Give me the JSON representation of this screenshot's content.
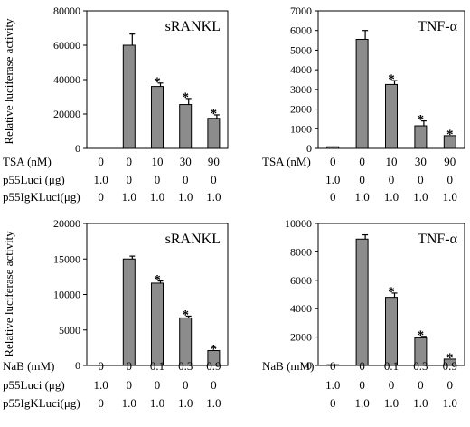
{
  "figure": {
    "ylabel": "Relative luciferase activity"
  },
  "chart_data": [
    {
      "type": "bar",
      "title": "sRANKL",
      "ylabel": "Relative luciferase activity",
      "ylim": [
        0,
        80000
      ],
      "y_ticks": [
        "0",
        "20000",
        "40000",
        "60000",
        "80000"
      ],
      "values": [
        0,
        60000,
        36000,
        25500,
        17500
      ],
      "errors": [
        0,
        6500,
        2000,
        3500,
        2000
      ],
      "significance": [
        "",
        "",
        "*",
        "*",
        "*"
      ],
      "conditions": [
        {
          "label": "TSA (nM)",
          "values": [
            "0",
            "0",
            "10",
            "30",
            "90"
          ]
        },
        {
          "label": "p55Luci (μg)",
          "values": [
            "1.0",
            "0",
            "0",
            "0",
            "0"
          ]
        },
        {
          "label": "p55IgKLuci(μg)",
          "values": [
            "0",
            "1.0",
            "1.0",
            "1.0",
            "1.0"
          ]
        }
      ]
    },
    {
      "type": "bar",
      "title": "TNF-α",
      "ylabel": "",
      "ylim": [
        0,
        7000
      ],
      "y_ticks": [
        "0",
        "1000",
        "2000",
        "3000",
        "4000",
        "5000",
        "6000",
        "7000"
      ],
      "values": [
        80,
        5550,
        3250,
        1150,
        650
      ],
      "errors": [
        0,
        450,
        200,
        250,
        0
      ],
      "significance": [
        "",
        "",
        "*",
        "*",
        "*"
      ],
      "conditions": [
        {
          "label": "TSA (nM)",
          "values": [
            "0",
            "0",
            "10",
            "30",
            "90"
          ]
        },
        {
          "label": "",
          "values": [
            "1.0",
            "0",
            "0",
            "0",
            "0"
          ]
        },
        {
          "label": "",
          "values": [
            "0",
            "1.0",
            "1.0",
            "1.0",
            "1.0"
          ]
        }
      ]
    },
    {
      "type": "bar",
      "title": "sRANKL",
      "ylabel": "Relative luciferase activity",
      "ylim": [
        0,
        20000
      ],
      "y_ticks": [
        "0",
        "5000",
        "10000",
        "15000",
        "20000"
      ],
      "values": [
        0,
        15000,
        11600,
        6700,
        2100
      ],
      "errors": [
        0,
        400,
        300,
        250,
        0
      ],
      "significance": [
        "",
        "",
        "*",
        "*",
        "*"
      ],
      "conditions": [
        {
          "label": "NaB (mM)",
          "values": [
            "0",
            "0",
            "0.1",
            "0.3",
            "0.9"
          ]
        },
        {
          "label": "p55Luci (μg)",
          "values": [
            "1.0",
            "0",
            "0",
            "0",
            "0"
          ]
        },
        {
          "label": "p55IgKLuci(μg)",
          "values": [
            "0",
            "1.0",
            "1.0",
            "1.0",
            "1.0"
          ]
        }
      ]
    },
    {
      "type": "bar",
      "title": "TNF-α",
      "ylabel": "",
      "ylim": [
        0,
        10000
      ],
      "y_ticks": [
        "0",
        "2000",
        "4000",
        "6000",
        "8000",
        "10000"
      ],
      "values": [
        50,
        8900,
        4800,
        1950,
        450
      ],
      "errors": [
        0,
        300,
        300,
        100,
        0
      ],
      "significance": [
        "",
        "",
        "*",
        "*",
        "*"
      ],
      "conditions": [
        {
          "label": "NaB (mM)",
          "values": [
            "0",
            "0",
            "0.1",
            "0.3",
            "0.9"
          ]
        },
        {
          "label": "",
          "values": [
            "1.0",
            "0",
            "0",
            "0",
            "0"
          ]
        },
        {
          "label": "",
          "values": [
            "0",
            "1.0",
            "1.0",
            "1.0",
            "1.0"
          ]
        }
      ]
    }
  ]
}
